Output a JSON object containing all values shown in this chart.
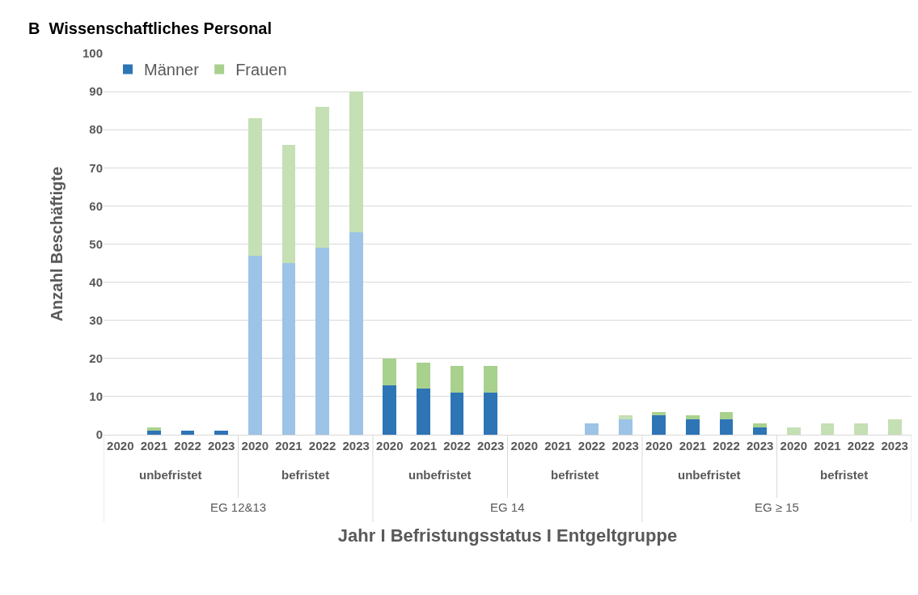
{
  "chart_data": {
    "type": "bar",
    "stacked": true,
    "title": "B  Wissenschaftliches Personal",
    "xlabel": "Jahr I Befristungsstatus I Entgeltgruppe",
    "ylabel": "Anzahl Beschäftigte",
    "categories": [
      "2020",
      "2021",
      "2022",
      "2023",
      "2020",
      "2021",
      "2022",
      "2023",
      "2020",
      "2021",
      "2022",
      "2023",
      "2020",
      "2021",
      "2022",
      "2023",
      "2020",
      "2021",
      "2022",
      "2023",
      "2020",
      "2021",
      "2022",
      "2023"
    ],
    "series": [
      {
        "name": "Männer",
        "color": "#2e75b6",
        "colors": [
          "#2e75b6",
          "#2e75b6",
          "#2e75b6",
          "#2e75b6",
          "#9dc3e6",
          "#9dc3e6",
          "#9dc3e6",
          "#9dc3e6",
          "#2e75b6",
          "#2e75b6",
          "#2e75b6",
          "#2e75b6",
          "#9dc3e6",
          "#9dc3e6",
          "#9dc3e6",
          "#9dc3e6",
          "#2e75b6",
          "#2e75b6",
          "#2e75b6",
          "#2e75b6",
          "#9dc3e6",
          "#9dc3e6",
          "#9dc3e6",
          "#9dc3e6"
        ],
        "values": [
          0,
          1,
          1,
          1,
          47,
          45,
          49,
          53,
          13,
          12,
          11,
          11,
          0,
          0,
          3,
          4,
          5,
          4,
          4,
          2,
          0,
          0,
          0,
          0
        ]
      },
      {
        "name": "Frauen",
        "color": "#a9d18e",
        "colors": [
          "#a9d18e",
          "#a9d18e",
          "#a9d18e",
          "#a9d18e",
          "#c5e0b4",
          "#c5e0b4",
          "#c5e0b4",
          "#c5e0b4",
          "#a9d18e",
          "#a9d18e",
          "#a9d18e",
          "#a9d18e",
          "#c5e0b4",
          "#c5e0b4",
          "#c5e0b4",
          "#c5e0b4",
          "#a9d18e",
          "#a9d18e",
          "#a9d18e",
          "#a9d18e",
          "#c5e0b4",
          "#c5e0b4",
          "#c5e0b4",
          "#c5e0b4"
        ],
        "values": [
          0,
          1,
          0,
          0,
          36,
          31,
          37,
          37,
          7,
          7,
          7,
          7,
          0,
          0,
          0,
          1,
          1,
          1,
          2,
          1,
          2,
          3,
          3,
          4
        ]
      }
    ],
    "annotations": [
      "unbefristet",
      "befristet",
      "unbefristet",
      "befristet",
      "unbefristet",
      "befristet",
      "EG 12&13",
      "EG 14",
      "EG ≥ 15"
    ],
    "ylim": [
      0,
      100
    ],
    "yticks": [
      0,
      10,
      20,
      30,
      40,
      50,
      60,
      70,
      80,
      90,
      100
    ],
    "grid": "y",
    "legend": "top left"
  }
}
